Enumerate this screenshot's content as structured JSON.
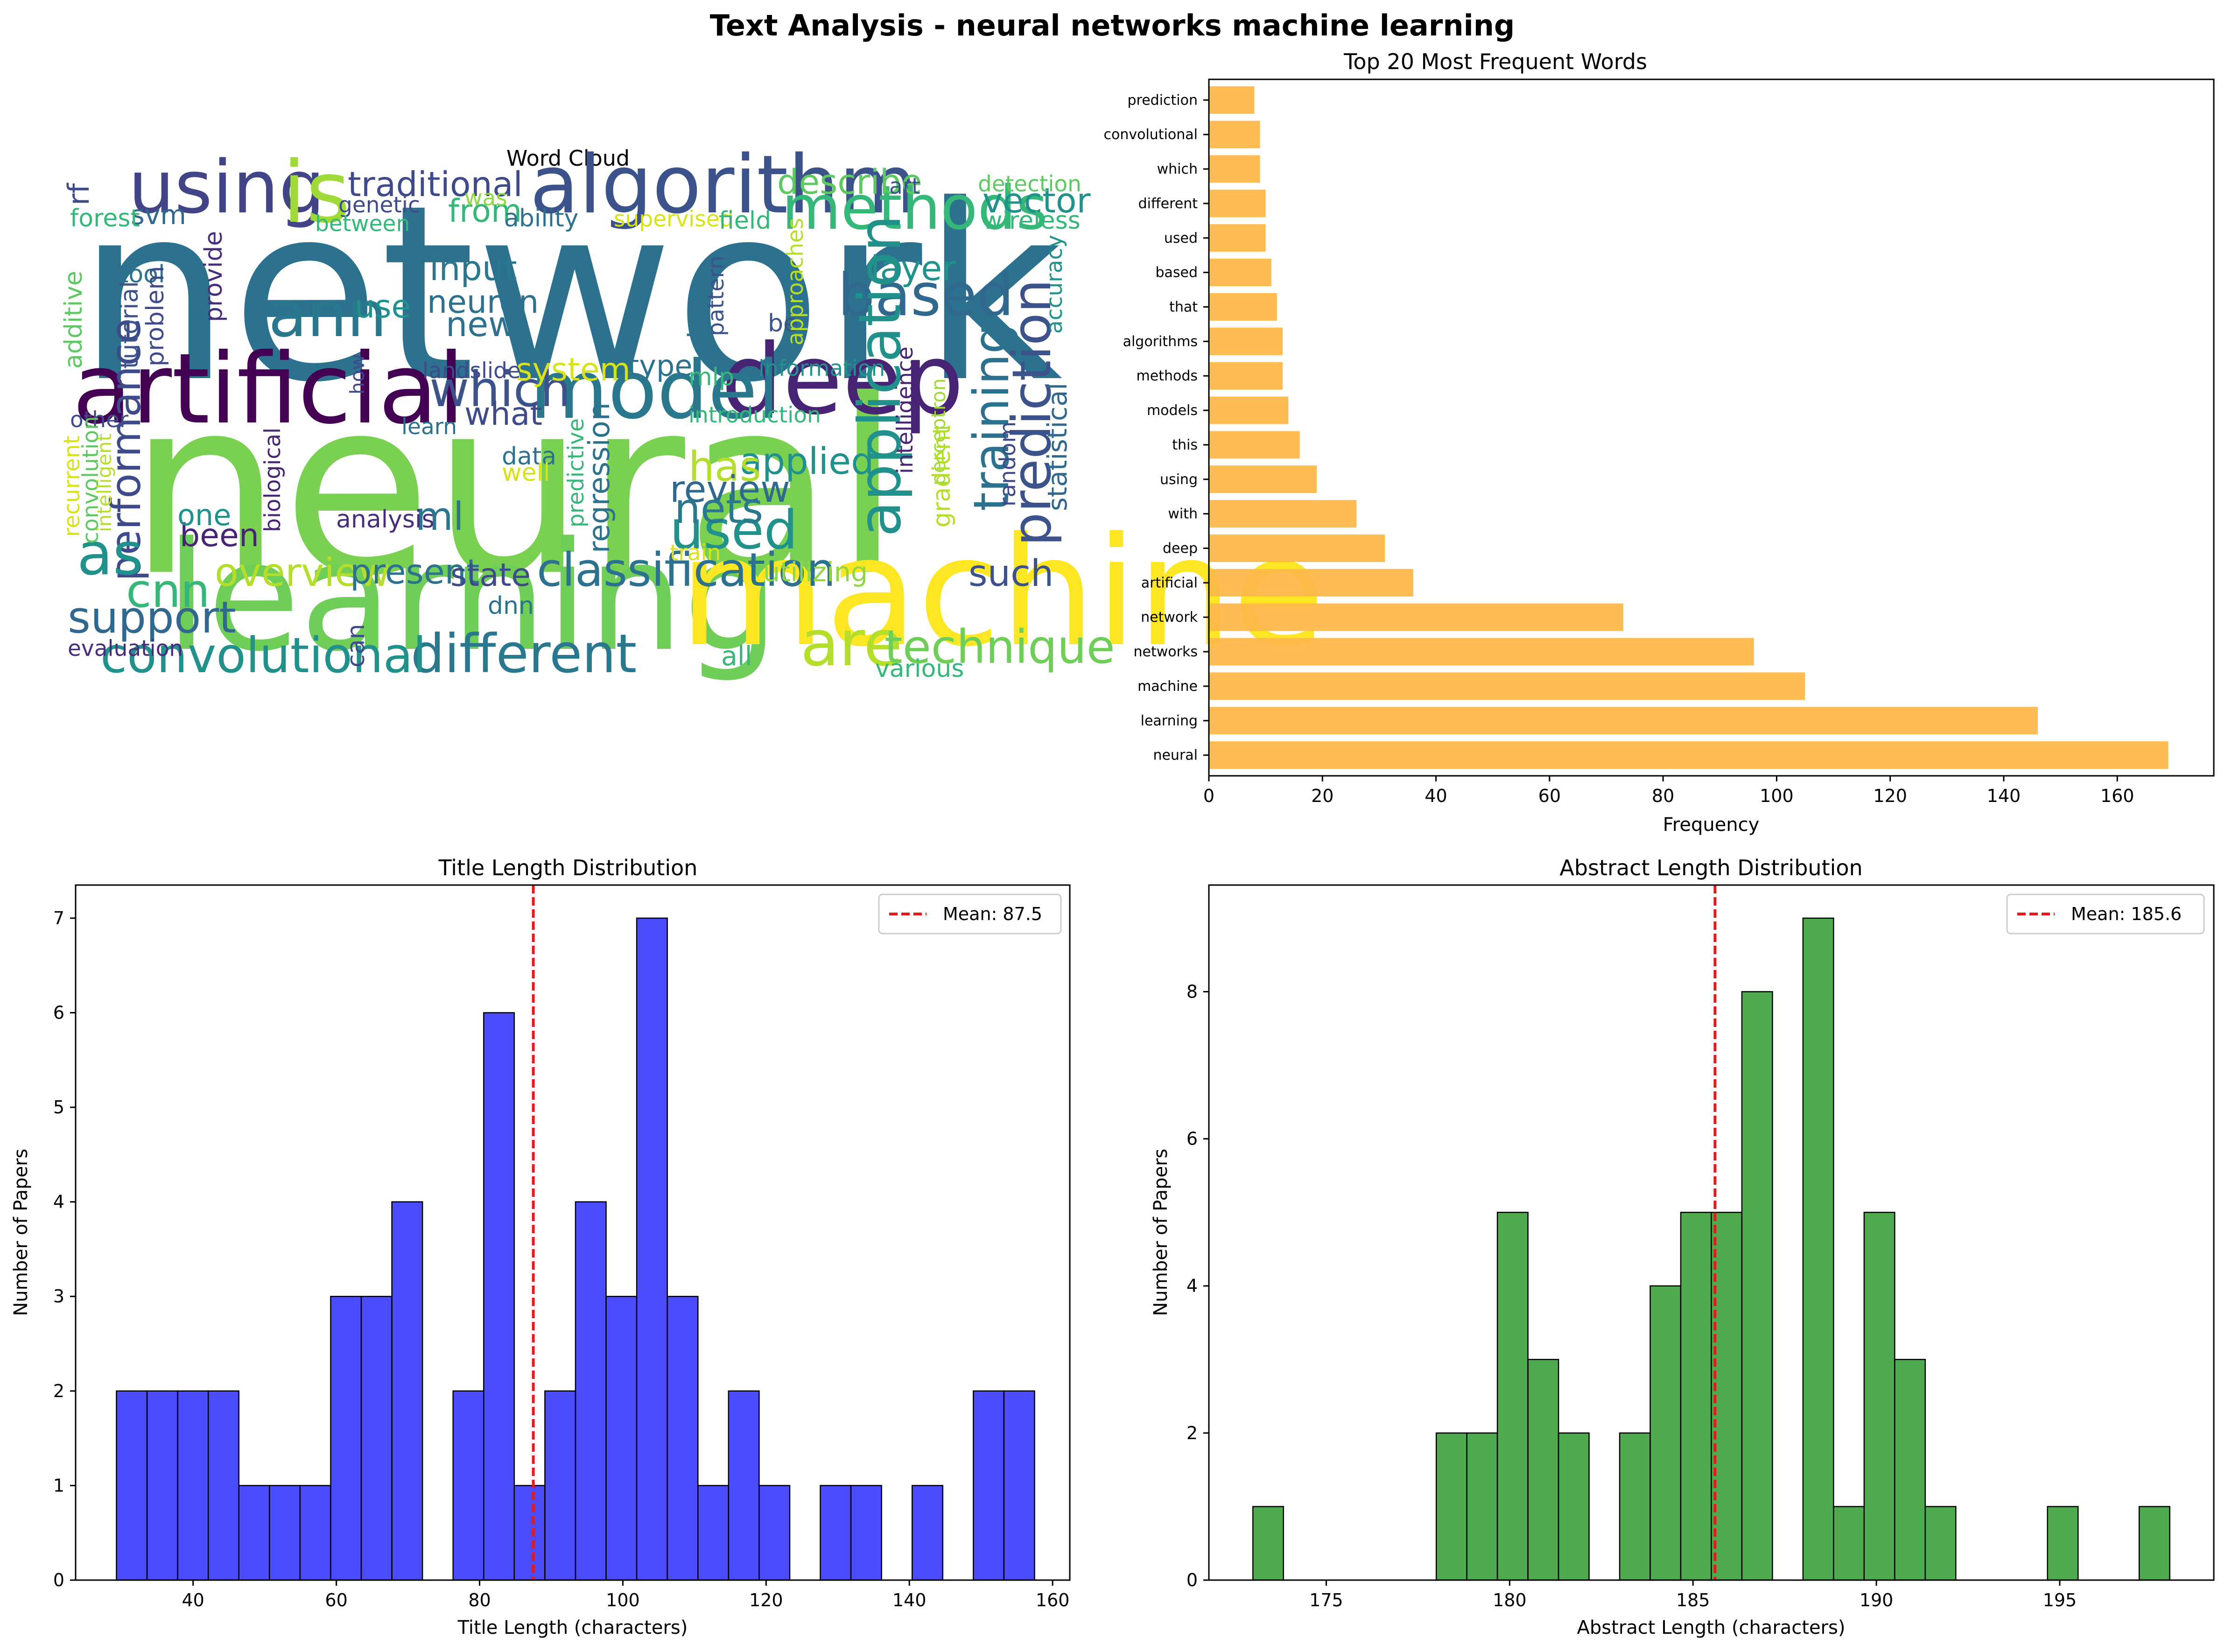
{
  "figure": {
    "suptitle": "Text Analysis - neural networks machine learning"
  },
  "wordcloud": {
    "title": "Word Cloud",
    "words": [
      {
        "text": "network",
        "color": "#2c728e",
        "size": 1.0
      },
      {
        "text": "neural",
        "color": "#7ad151",
        "size": 1.0
      },
      {
        "text": "learning",
        "color": "#6ece58",
        "size": 0.62
      },
      {
        "text": "machine",
        "color": "#fde725",
        "size": 0.62
      },
      {
        "text": "artificial",
        "color": "#440154",
        "size": 0.4
      },
      {
        "text": "deep",
        "color": "#482475",
        "size": 0.4
      },
      {
        "text": "algorithm",
        "color": "#3b528b",
        "size": 0.33
      },
      {
        "text": "model",
        "color": "#2a788e",
        "size": 0.33
      },
      {
        "text": "using",
        "color": "#414487",
        "size": 0.3
      },
      {
        "text": "is",
        "color": "#a0da39",
        "size": 0.35
      },
      {
        "text": "methods",
        "color": "#35b779",
        "size": 0.25
      },
      {
        "text": "ann",
        "color": "#2a788e",
        "size": 0.26
      },
      {
        "text": "based",
        "color": "#31688e",
        "size": 0.24
      },
      {
        "text": "application",
        "color": "#21918c",
        "size": 0.24
      },
      {
        "text": "prediction",
        "color": "#3b528b",
        "size": 0.22
      },
      {
        "text": "training",
        "color": "#2c728e",
        "size": 0.2
      },
      {
        "text": "which",
        "color": "#3b528b",
        "size": 0.2
      },
      {
        "text": "are",
        "color": "#b5de2b",
        "size": 0.26
      },
      {
        "text": "used",
        "color": "#21918c",
        "size": 0.22
      },
      {
        "text": "different",
        "color": "#2a788e",
        "size": 0.22
      },
      {
        "text": "convolutional",
        "color": "#21918c",
        "size": 0.2
      },
      {
        "text": "classification",
        "color": "#2c728e",
        "size": 0.19
      },
      {
        "text": "support",
        "color": "#31688e",
        "size": 0.18
      },
      {
        "text": "technique",
        "color": "#6ece58",
        "size": 0.19
      },
      {
        "text": "performance",
        "color": "#3e4a89",
        "size": 0.17
      },
      {
        "text": "as",
        "color": "#21918c",
        "size": 0.24
      },
      {
        "text": "cnn",
        "color": "#35b779",
        "size": 0.19
      },
      {
        "text": "overview",
        "color": "#b5de2b",
        "size": 0.16
      },
      {
        "text": "present",
        "color": "#2c728e",
        "size": 0.14
      },
      {
        "text": "state",
        "color": "#3e4a89",
        "size": 0.13
      },
      {
        "text": "such",
        "color": "#3b528b",
        "size": 0.15
      },
      {
        "text": "utilizing",
        "color": "#8fd744",
        "size": 0.11
      },
      {
        "text": "applied",
        "color": "#21918c",
        "size": 0.15
      },
      {
        "text": "has",
        "color": "#b5de2b",
        "size": 0.17
      },
      {
        "text": "review",
        "color": "#31688e",
        "size": 0.15
      },
      {
        "text": "nets",
        "color": "#2a788e",
        "size": 0.17
      },
      {
        "text": "traditional",
        "color": "#3e4a89",
        "size": 0.14
      },
      {
        "text": "describe",
        "color": "#5ec962",
        "size": 0.14
      },
      {
        "text": "vector",
        "color": "#21918c",
        "size": 0.14
      },
      {
        "text": "layer",
        "color": "#21918c",
        "size": 0.14
      },
      {
        "text": "input",
        "color": "#2a788e",
        "size": 0.14
      },
      {
        "text": "neuron",
        "color": "#2c728e",
        "size": 0.13
      },
      {
        "text": "new",
        "color": "#2c728e",
        "size": 0.14
      },
      {
        "text": "what",
        "color": "#3e4a89",
        "size": 0.13
      },
      {
        "text": "system",
        "color": "#d8e219",
        "size": 0.13
      },
      {
        "text": "type",
        "color": "#2c728e",
        "size": 0.12
      },
      {
        "text": "mlp",
        "color": "#35b779",
        "size": 0.1
      },
      {
        "text": "from",
        "color": "#35b779",
        "size": 0.13
      },
      {
        "text": "use",
        "color": "#21918c",
        "size": 0.13
      },
      {
        "text": "ml",
        "color": "#2a788e",
        "size": 0.16
      },
      {
        "text": "been",
        "color": "#482475",
        "size": 0.13
      },
      {
        "text": "one",
        "color": "#21918c",
        "size": 0.12
      },
      {
        "text": "svm",
        "color": "#31688e",
        "size": 0.11
      },
      {
        "text": "rf",
        "color": "#3e4a89",
        "size": 0.12
      },
      {
        "text": "forest",
        "color": "#35b779",
        "size": 0.1
      },
      {
        "text": "tool",
        "color": "#2c728e",
        "size": 0.1
      },
      {
        "text": "additive",
        "color": "#5ec962",
        "size": 0.1
      },
      {
        "text": "tutorial",
        "color": "#3b528b",
        "size": 0.1
      },
      {
        "text": "problem",
        "color": "#3e4a89",
        "size": 0.1
      },
      {
        "text": "provide",
        "color": "#472d7b",
        "size": 0.1
      },
      {
        "text": "genetic",
        "color": "#3e4a89",
        "size": 0.09
      },
      {
        "text": "between",
        "color": "#35b779",
        "size": 0.09
      },
      {
        "text": "ability",
        "color": "#2c728e",
        "size": 0.1
      },
      {
        "text": "was",
        "color": "#8fd744",
        "size": 0.09
      },
      {
        "text": "supervised",
        "color": "#d8e219",
        "size": 0.09
      },
      {
        "text": "field",
        "color": "#35b779",
        "size": 0.1
      },
      {
        "text": "art",
        "color": "#3b528b",
        "size": 0.09
      },
      {
        "text": "detection",
        "color": "#5ec962",
        "size": 0.09
      },
      {
        "text": "wireless",
        "color": "#35b779",
        "size": 0.1
      },
      {
        "text": "accuracy",
        "color": "#21918c",
        "size": 0.09
      },
      {
        "text": "have",
        "color": "#2c728e",
        "size": 0.11
      },
      {
        "text": "pattern",
        "color": "#3b528b",
        "size": 0.09
      },
      {
        "text": "be",
        "color": "#3b528b",
        "size": 0.1
      },
      {
        "text": "approaches",
        "color": "#b5de2b",
        "size": 0.09
      },
      {
        "text": "landslide",
        "color": "#3e4a89",
        "size": 0.09
      },
      {
        "text": "information",
        "color": "#21918c",
        "size": 0.09
      },
      {
        "text": "introduction",
        "color": "#35b779",
        "size": 0.09
      },
      {
        "text": "intelligence",
        "color": "#482475",
        "size": 0.09
      },
      {
        "text": "perceptron",
        "color": "#a0da39",
        "size": 0.08
      },
      {
        "text": "gradient",
        "color": "#b5de2b",
        "size": 0.1
      },
      {
        "text": "random",
        "color": "#3e4a89",
        "size": 0.09
      },
      {
        "text": "statistical",
        "color": "#31688e",
        "size": 0.11
      },
      {
        "text": "how",
        "color": "#3e4a89",
        "size": 0.08
      },
      {
        "text": "learn",
        "color": "#2c728e",
        "size": 0.09
      },
      {
        "text": "other",
        "color": "#3e4a89",
        "size": 0.09
      },
      {
        "text": "recurrent",
        "color": "#d8e219",
        "size": 0.09
      },
      {
        "text": "convolution",
        "color": "#5ec962",
        "size": 0.09
      },
      {
        "text": "intelligent",
        "color": "#b5de2b",
        "size": 0.08
      },
      {
        "text": "biological",
        "color": "#482475",
        "size": 0.09
      },
      {
        "text": "data",
        "color": "#2c728e",
        "size": 0.1
      },
      {
        "text": "well",
        "color": "#d8e219",
        "size": 0.1
      },
      {
        "text": "predictive",
        "color": "#35b779",
        "size": 0.09
      },
      {
        "text": "regression",
        "color": "#2c728e",
        "size": 0.12
      },
      {
        "text": "analysis",
        "color": "#472d7b",
        "size": 0.1
      },
      {
        "text": "train",
        "color": "#d8e219",
        "size": 0.09
      },
      {
        "text": "dnn",
        "color": "#2c728e",
        "size": 0.1
      },
      {
        "text": "can",
        "color": "#3e4a89",
        "size": 0.1
      },
      {
        "text": "all",
        "color": "#35b779",
        "size": 0.11
      },
      {
        "text": "various",
        "color": "#35b779",
        "size": 0.1
      },
      {
        "text": "evaluation",
        "color": "#472d7b",
        "size": 0.09
      }
    ]
  },
  "chart_data": [
    {
      "type": "bar",
      "orientation": "horizontal",
      "title": "Top 20 Most Frequent Words",
      "xlabel": "Frequency",
      "ylabel": "",
      "xlim": [
        0,
        177
      ],
      "xticks": [
        0,
        20,
        40,
        60,
        80,
        100,
        120,
        140,
        160
      ],
      "color": "#ffb84a",
      "categories": [
        "neural",
        "learning",
        "machine",
        "networks",
        "network",
        "artificial",
        "deep",
        "with",
        "using",
        "this",
        "models",
        "methods",
        "algorithms",
        "that",
        "based",
        "used",
        "different",
        "which",
        "convolutional",
        "prediction"
      ],
      "values": [
        169,
        146,
        105,
        96,
        73,
        36,
        31,
        26,
        19,
        16,
        14,
        13,
        13,
        12,
        11,
        10,
        10,
        9,
        9,
        8
      ]
    },
    {
      "type": "bar",
      "subtype": "histogram",
      "title": "Title Length Distribution",
      "xlabel": "Title Length (characters)",
      "ylabel": "Number of Papers",
      "xlim": [
        23.6,
        162.4
      ],
      "ylim": [
        0,
        7.35
      ],
      "xticks": [
        40,
        60,
        80,
        100,
        120,
        140,
        160
      ],
      "yticks": [
        0,
        1,
        2,
        3,
        4,
        5,
        6,
        7
      ],
      "color": "#4848ff",
      "bin_start": 29.3,
      "bin_width": 4.2727,
      "counts": [
        2,
        2,
        2,
        2,
        1,
        1,
        1,
        3,
        3,
        4,
        0,
        2,
        6,
        1,
        2,
        4,
        3,
        7,
        3,
        1,
        2,
        1,
        0,
        1,
        1,
        0,
        1,
        0,
        2,
        2
      ],
      "mean": 87.5,
      "mean_color": "#e31a1c",
      "legend": "Mean: 87.5"
    },
    {
      "type": "bar",
      "subtype": "histogram",
      "title": "Abstract Length Distribution",
      "xlabel": "Abstract Length (characters)",
      "ylabel": "Number of Papers",
      "xlim": [
        171.8,
        199.2
      ],
      "ylim": [
        0,
        9.45
      ],
      "xticks": [
        175,
        180,
        185,
        190,
        195
      ],
      "yticks": [
        0,
        2,
        4,
        6,
        8
      ],
      "color": "#4ba74b",
      "bin_start": 173,
      "bin_width": 0.8333,
      "counts": [
        1,
        0,
        0,
        0,
        0,
        0,
        2,
        2,
        5,
        3,
        2,
        0,
        2,
        4,
        5,
        5,
        8,
        0,
        9,
        1,
        5,
        3,
        1,
        0,
        0,
        0,
        1,
        0,
        0,
        1
      ],
      "mean": 185.6,
      "mean_color": "#e31a1c",
      "legend": "Mean: 185.6"
    }
  ]
}
